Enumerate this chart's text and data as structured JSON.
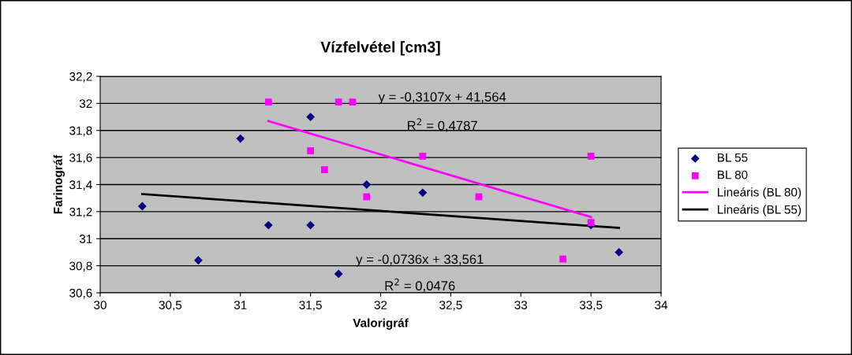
{
  "chart_data": {
    "type": "scatter",
    "title": "Vízfelvétel [cm3]",
    "xlabel": "Valorigráf",
    "ylabel": "Farinográf",
    "xlim": [
      30,
      34
    ],
    "ylim": [
      30.6,
      32.2
    ],
    "xticks": [
      30,
      {
        "value": 30.5,
        "label": "30,5"
      },
      31,
      {
        "value": 31.5,
        "label": "31,5"
      },
      32,
      {
        "value": 32.5,
        "label": "32,5"
      },
      33,
      {
        "value": 33.5,
        "label": "33,5"
      },
      34
    ],
    "yticks": [
      {
        "value": 30.6,
        "label": "30,6"
      },
      {
        "value": 30.8,
        "label": "30,8"
      },
      31,
      {
        "value": 31.2,
        "label": "31,2"
      },
      {
        "value": 31.4,
        "label": "31,4"
      },
      {
        "value": 31.6,
        "label": "31,6"
      },
      {
        "value": 31.8,
        "label": "31,8"
      },
      32,
      {
        "value": 32.2,
        "label": "32,2"
      }
    ],
    "grid": "y",
    "legend": "right",
    "series": [
      {
        "name": "BL 55",
        "color": "#000080",
        "marker": "diamond",
        "x": [
          30.3,
          30.7,
          31.0,
          31.2,
          31.5,
          31.5,
          31.7,
          31.9,
          32.3,
          33.5,
          33.7
        ],
        "values": [
          31.24,
          30.84,
          31.74,
          31.1,
          31.9,
          31.1,
          30.74,
          31.4,
          31.34,
          31.1,
          30.9
        ]
      },
      {
        "name": "BL 80",
        "color": "#ff00ff",
        "marker": "square",
        "x": [
          31.2,
          31.5,
          31.6,
          31.7,
          31.8,
          31.9,
          32.3,
          32.7,
          33.3,
          33.5,
          33.5
        ],
        "values": [
          32.01,
          31.65,
          31.51,
          32.01,
          32.01,
          31.31,
          31.61,
          31.31,
          30.85,
          31.61,
          31.12
        ]
      },
      {
        "name": "Lineáris (BL 80)",
        "type": "line",
        "color": "#ff00ff",
        "x": [
          31.2,
          33.5
        ],
        "values": [
          31.87,
          31.16
        ]
      },
      {
        "name": "Lineáris (BL 55)",
        "type": "line",
        "color": "#000000",
        "x": [
          30.3,
          33.7
        ],
        "values": [
          31.33,
          31.08
        ]
      }
    ],
    "annotations": [
      "y = -0,3107x + 41,564",
      "R$^{2}$ = 0,4787",
      "y = -0,0736x + 33,561",
      "R$^{2}$ = 0,0476"
    ]
  }
}
